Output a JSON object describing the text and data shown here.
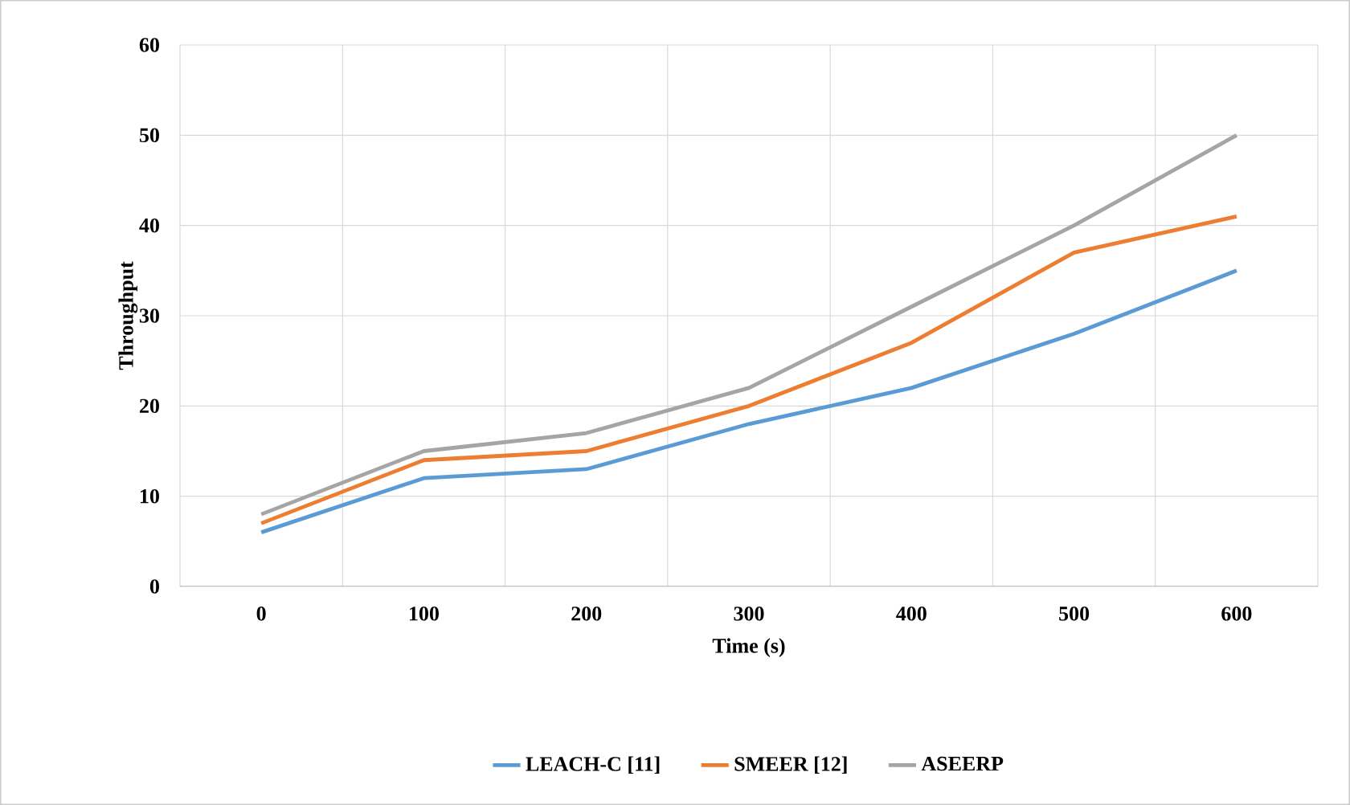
{
  "chart_data": {
    "type": "line",
    "xlabel": "Time (s)",
    "ylabel": "Throughput",
    "categories": [
      "0",
      "100",
      "200",
      "300",
      "400",
      "500",
      "600"
    ],
    "series": [
      {
        "name": "LEACH-C [11]",
        "color": "#5b9bd5",
        "values": [
          6,
          12,
          13,
          18,
          22,
          28,
          35
        ]
      },
      {
        "name": "SMEER [12]",
        "color": "#ed7d31",
        "values": [
          7,
          14,
          15,
          20,
          27,
          37,
          41
        ]
      },
      {
        "name": "ASEERP",
        "color": "#a5a5a5",
        "values": [
          8,
          15,
          17,
          22,
          31,
          40,
          50
        ]
      }
    ],
    "ylim": [
      0,
      60
    ],
    "yticks": [
      0,
      10,
      20,
      30,
      40,
      50,
      60
    ],
    "grid": true,
    "legend": "bottom",
    "marker": "none",
    "line_style": "solid"
  }
}
